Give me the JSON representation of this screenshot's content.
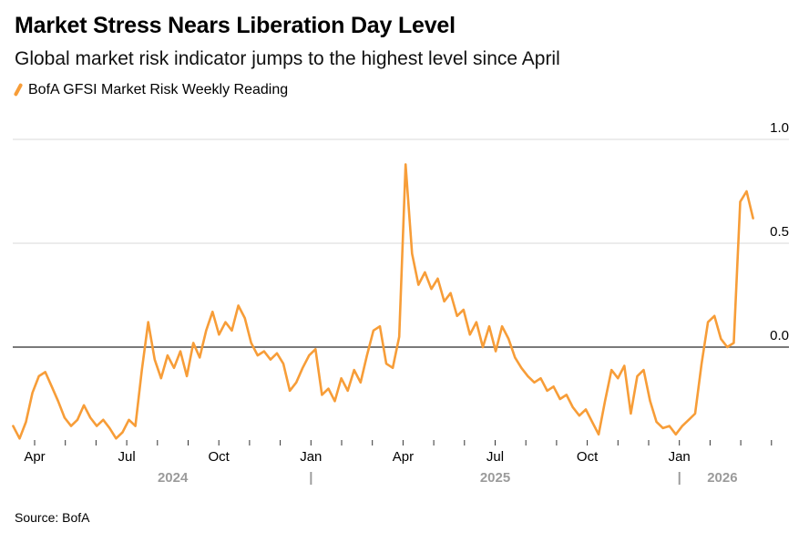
{
  "header": {
    "title": "Market Stress Nears Liberation Day Level",
    "subtitle": "Global market risk indicator jumps to the highest level since April"
  },
  "legend": {
    "series_label": "BofA GFSI Market Risk Weekly Reading",
    "color": "#F79D38"
  },
  "source": "Source: BofA",
  "chart_data": {
    "type": "line",
    "title": "Market Stress Nears Liberation Day Level",
    "series_name": "BofA GFSI Market Risk Weekly Reading",
    "line_color": "#F79D38",
    "grid_color": "#d9d9d9",
    "zero_line_color": "#4d4d4d",
    "tick_color": "#333333",
    "year_label_color": "#9b9b9b",
    "grid": "horizontal",
    "zero_line": true,
    "x_unit": "months since April 2024 (weekly readings)",
    "x_start_month": -0.7,
    "x_end_month": 23.4,
    "values": [
      -0.38,
      -0.44,
      -0.36,
      -0.22,
      -0.14,
      -0.12,
      -0.19,
      -0.26,
      -0.34,
      -0.38,
      -0.35,
      -0.28,
      -0.34,
      -0.38,
      -0.35,
      -0.39,
      -0.44,
      -0.41,
      -0.35,
      -0.38,
      -0.11,
      0.12,
      -0.06,
      -0.15,
      -0.04,
      -0.1,
      -0.02,
      -0.14,
      0.02,
      -0.05,
      0.08,
      0.17,
      0.06,
      0.12,
      0.08,
      0.2,
      0.14,
      0.02,
      -0.04,
      -0.02,
      -0.06,
      -0.03,
      -0.08,
      -0.21,
      -0.17,
      -0.1,
      -0.04,
      -0.01,
      -0.23,
      -0.2,
      -0.26,
      -0.15,
      -0.21,
      -0.11,
      -0.17,
      -0.04,
      0.08,
      0.1,
      -0.08,
      -0.1,
      0.05,
      0.88,
      0.45,
      0.3,
      0.36,
      0.28,
      0.33,
      0.22,
      0.26,
      0.15,
      0.18,
      0.06,
      0.12,
      0.0,
      0.1,
      -0.02,
      0.1,
      0.04,
      -0.05,
      -0.1,
      -0.14,
      -0.17,
      -0.15,
      -0.21,
      -0.19,
      -0.25,
      -0.23,
      -0.29,
      -0.33,
      -0.3,
      -0.36,
      -0.42,
      -0.26,
      -0.11,
      -0.15,
      -0.09,
      -0.32,
      -0.14,
      -0.11,
      -0.26,
      -0.36,
      -0.39,
      -0.38,
      -0.42,
      -0.38,
      -0.35,
      -0.32,
      -0.08,
      0.12,
      0.15,
      0.04,
      0.0,
      0.02,
      0.7,
      0.75,
      0.62
    ],
    "y_axis": {
      "ticks": [
        1.0,
        0.5,
        0.0
      ],
      "labels": [
        "1.0",
        "0.5",
        "0.0"
      ],
      "range": [
        -0.5,
        1.0
      ]
    },
    "x_axis": {
      "month_tick_count": 25,
      "labeled_ticks": [
        {
          "month": 0,
          "label": "Apr"
        },
        {
          "month": 3,
          "label": "Jul"
        },
        {
          "month": 6,
          "label": "Oct"
        },
        {
          "month": 9,
          "label": "Jan"
        },
        {
          "month": 12,
          "label": "Apr"
        },
        {
          "month": 15,
          "label": "Jul"
        },
        {
          "month": 18,
          "label": "Oct"
        },
        {
          "month": 21,
          "label": "Jan"
        }
      ],
      "year_labels": [
        {
          "month": 4.5,
          "label": "2024"
        },
        {
          "month": 9,
          "label": "|"
        },
        {
          "month": 15,
          "label": "2025"
        },
        {
          "month": 21,
          "label": "|"
        },
        {
          "month": 22.4,
          "label": "2026"
        }
      ]
    }
  }
}
